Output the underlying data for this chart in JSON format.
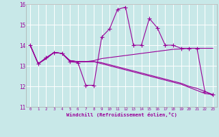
{
  "xlabel": "Windchill (Refroidissement éolien,°C)",
  "bg_color": "#c8e8e8",
  "line_color": "#990099",
  "grid_color": "#ffffff",
  "xlim": [
    -0.5,
    23.5
  ],
  "ylim": [
    11,
    16
  ],
  "yticks": [
    11,
    12,
    13,
    14,
    15,
    16
  ],
  "xticks": [
    0,
    1,
    2,
    3,
    4,
    5,
    6,
    7,
    8,
    9,
    10,
    11,
    12,
    13,
    14,
    15,
    16,
    17,
    18,
    19,
    20,
    21,
    22,
    23
  ],
  "lines": [
    {
      "has_markers": true,
      "x": [
        0,
        1,
        2,
        3,
        4,
        5,
        6,
        7,
        8,
        9,
        10,
        11,
        12,
        13,
        14,
        15,
        16,
        17,
        18,
        19,
        20,
        21,
        22,
        23
      ],
      "y": [
        14.0,
        13.1,
        13.4,
        13.65,
        13.6,
        13.2,
        13.15,
        12.05,
        12.05,
        14.4,
        14.8,
        15.75,
        15.85,
        14.0,
        14.0,
        15.3,
        14.85,
        14.0,
        14.0,
        13.85,
        13.85,
        13.85,
        11.75,
        11.6
      ]
    },
    {
      "has_markers": false,
      "x": [
        0,
        1,
        2,
        3,
        4,
        5,
        6,
        7,
        8,
        9,
        10,
        11,
        12,
        13,
        14,
        15,
        16,
        17,
        18,
        19,
        20,
        21,
        22,
        23
      ],
      "y": [
        14.0,
        13.1,
        13.35,
        13.65,
        13.6,
        13.25,
        13.2,
        13.2,
        13.25,
        13.35,
        13.4,
        13.45,
        13.5,
        13.55,
        13.6,
        13.65,
        13.7,
        13.75,
        13.8,
        13.82,
        13.85,
        13.85,
        13.85,
        13.85
      ]
    },
    {
      "has_markers": false,
      "x": [
        0,
        1,
        2,
        3,
        4,
        5,
        6,
        7,
        8,
        9,
        10,
        11,
        12,
        13,
        14,
        15,
        16,
        17,
        18,
        19,
        20,
        21,
        22,
        23
      ],
      "y": [
        14.0,
        13.1,
        13.35,
        13.65,
        13.6,
        13.25,
        13.2,
        13.2,
        13.2,
        13.15,
        13.05,
        12.95,
        12.85,
        12.75,
        12.65,
        12.55,
        12.45,
        12.35,
        12.25,
        12.15,
        12.0,
        11.9,
        11.75,
        11.55
      ]
    },
    {
      "has_markers": false,
      "x": [
        0,
        1,
        2,
        3,
        4,
        5,
        6,
        7,
        8,
        9,
        10,
        11,
        12,
        13,
        14,
        15,
        16,
        17,
        18,
        19,
        20,
        21,
        22,
        23
      ],
      "y": [
        14.0,
        13.1,
        13.35,
        13.65,
        13.6,
        13.25,
        13.2,
        13.2,
        13.2,
        13.1,
        13.0,
        12.9,
        12.8,
        12.7,
        12.6,
        12.5,
        12.4,
        12.3,
        12.2,
        12.1,
        11.95,
        11.8,
        11.65,
        11.6
      ]
    }
  ]
}
